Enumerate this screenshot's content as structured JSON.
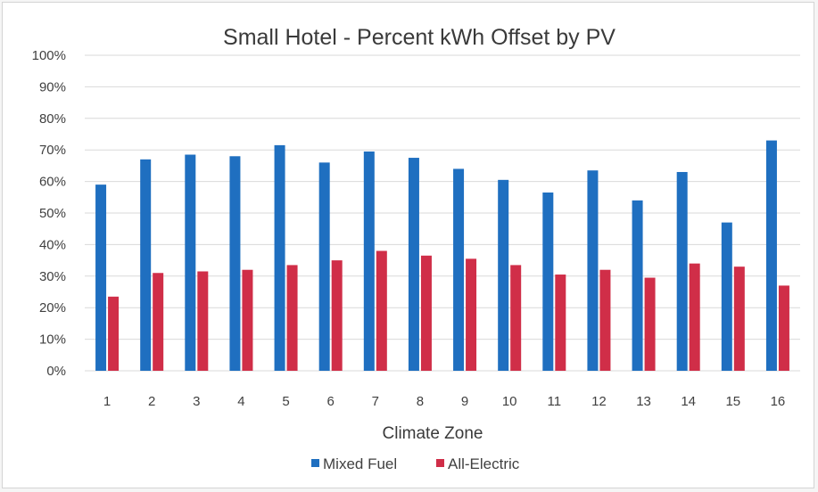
{
  "chart_data": {
    "type": "bar",
    "title": "Small Hotel - Percent kWh Offset by PV",
    "xlabel": "Climate Zone",
    "ylabel": "",
    "categories": [
      "1",
      "2",
      "3",
      "4",
      "5",
      "6",
      "7",
      "8",
      "9",
      "10",
      "11",
      "12",
      "13",
      "14",
      "15",
      "16"
    ],
    "series": [
      {
        "name": "Mixed Fuel",
        "color": "#1f6fc0",
        "values": [
          59,
          67,
          68.5,
          68,
          71.5,
          66,
          69.5,
          67.5,
          64,
          60.5,
          56.5,
          63.5,
          54,
          63,
          47,
          73
        ]
      },
      {
        "name": "All-Electric",
        "color": "#d02e48",
        "values": [
          23.5,
          31,
          31.5,
          32,
          33.5,
          35,
          38,
          36.5,
          35.5,
          33.5,
          30.5,
          32,
          29.5,
          34,
          33,
          27
        ]
      }
    ],
    "ylim": [
      0,
      100
    ],
    "yticks": [
      "0%",
      "10%",
      "20%",
      "30%",
      "40%",
      "50%",
      "60%",
      "70%",
      "80%",
      "90%",
      "100%"
    ],
    "grid": true,
    "legend": "bottom"
  }
}
